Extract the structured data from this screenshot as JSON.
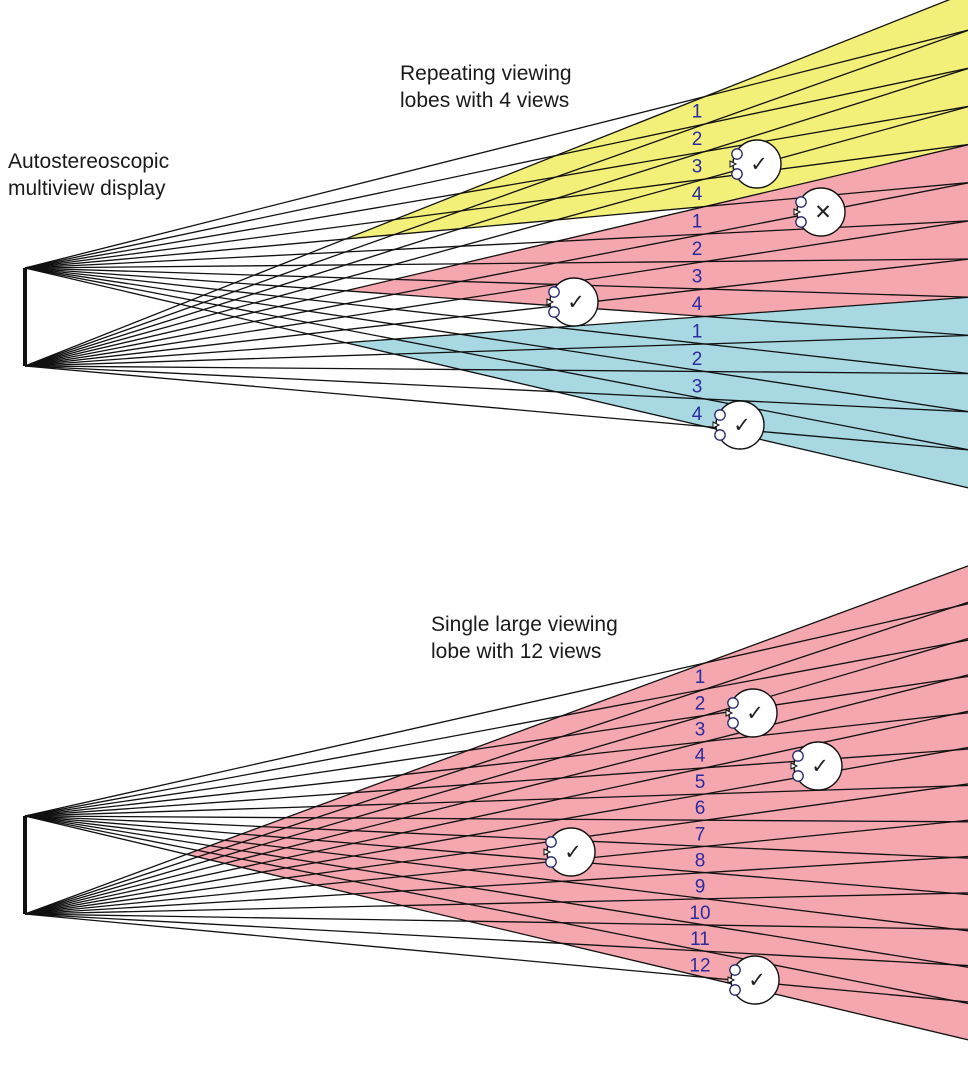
{
  "labels": {
    "display_line1": "Autostereoscopic",
    "display_line2": "multiview display",
    "top_title_line1": "Repeating viewing",
    "top_title_line2": "lobes with 4 views",
    "bottom_title_line1": "Single large viewing",
    "bottom_title_line2": "lobe with 12 views"
  },
  "top_panel": {
    "lobes": [
      {
        "color": "#f3f07a",
        "views": [
          "1",
          "2",
          "3",
          "4"
        ]
      },
      {
        "color": "#f4a7ae",
        "views": [
          "1",
          "2",
          "3",
          "4"
        ]
      },
      {
        "color": "#a8d9e3",
        "views": [
          "1",
          "2",
          "3",
          "4"
        ]
      }
    ],
    "viewers": [
      {
        "mark": "✓",
        "ok": true
      },
      {
        "mark": "✕",
        "ok": false
      },
      {
        "mark": "✓",
        "ok": true
      },
      {
        "mark": "✓",
        "ok": true
      }
    ]
  },
  "bottom_panel": {
    "lobe_color": "#f4a7ae",
    "views": [
      "1",
      "2",
      "3",
      "4",
      "5",
      "6",
      "7",
      "8",
      "9",
      "10",
      "11",
      "12"
    ],
    "viewers": [
      {
        "mark": "✓",
        "ok": true
      },
      {
        "mark": "✓",
        "ok": true
      },
      {
        "mark": "✓",
        "ok": true
      },
      {
        "mark": "✓",
        "ok": true
      }
    ]
  },
  "colors": {
    "line": "#111111",
    "view_number": "#2b2aa0"
  }
}
